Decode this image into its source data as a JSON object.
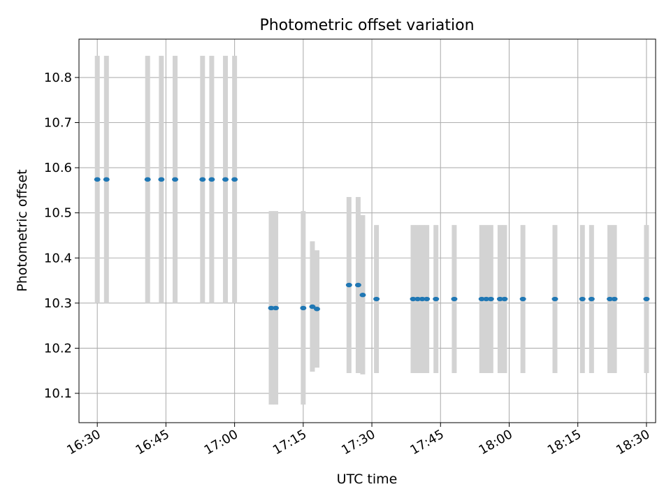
{
  "chart_data": {
    "type": "scatter",
    "title": "Photometric offset variation",
    "xlabel": "UTC time",
    "ylabel": "Photometric offset",
    "xlim": [
      "16:26",
      "18:32"
    ],
    "ylim": [
      10.035,
      10.885
    ],
    "grid": true,
    "x_ticks": [
      "16:30",
      "16:45",
      "17:00",
      "17:15",
      "17:30",
      "17:45",
      "18:00",
      "18:15",
      "18:30"
    ],
    "y_ticks": [
      "10.1",
      "10.2",
      "10.3",
      "10.4",
      "10.5",
      "10.6",
      "10.7",
      "10.8"
    ],
    "point_color": "#1f77b4",
    "errorbar_color": "#d3d3d3",
    "points": [
      {
        "time": "16:30",
        "y": 10.574,
        "ylow": 10.3,
        "yhigh": 10.848
      },
      {
        "time": "16:32",
        "y": 10.574,
        "ylow": 10.3,
        "yhigh": 10.848
      },
      {
        "time": "16:41",
        "y": 10.574,
        "ylow": 10.3,
        "yhigh": 10.848
      },
      {
        "time": "16:44",
        "y": 10.574,
        "ylow": 10.3,
        "yhigh": 10.848
      },
      {
        "time": "16:47",
        "y": 10.574,
        "ylow": 10.3,
        "yhigh": 10.848
      },
      {
        "time": "16:53",
        "y": 10.574,
        "ylow": 10.3,
        "yhigh": 10.848
      },
      {
        "time": "16:55",
        "y": 10.574,
        "ylow": 10.3,
        "yhigh": 10.848
      },
      {
        "time": "16:58",
        "y": 10.574,
        "ylow": 10.3,
        "yhigh": 10.848
      },
      {
        "time": "17:00",
        "y": 10.574,
        "ylow": 10.3,
        "yhigh": 10.848
      },
      {
        "time": "17:08",
        "y": 10.289,
        "ylow": 10.075,
        "yhigh": 10.504
      },
      {
        "time": "17:09",
        "y": 10.289,
        "ylow": 10.075,
        "yhigh": 10.504
      },
      {
        "time": "17:15",
        "y": 10.289,
        "ylow": 10.075,
        "yhigh": 10.504
      },
      {
        "time": "17:17",
        "y": 10.292,
        "ylow": 10.148,
        "yhigh": 10.437
      },
      {
        "time": "17:18",
        "y": 10.287,
        "ylow": 10.157,
        "yhigh": 10.417
      },
      {
        "time": "17:25",
        "y": 10.34,
        "ylow": 10.145,
        "yhigh": 10.535
      },
      {
        "time": "17:27",
        "y": 10.34,
        "ylow": 10.145,
        "yhigh": 10.535
      },
      {
        "time": "17:28",
        "y": 10.318,
        "ylow": 10.142,
        "yhigh": 10.495
      },
      {
        "time": "17:31",
        "y": 10.309,
        "ylow": 10.145,
        "yhigh": 10.473
      },
      {
        "time": "17:39",
        "y": 10.309,
        "ylow": 10.145,
        "yhigh": 10.473
      },
      {
        "time": "17:40",
        "y": 10.309,
        "ylow": 10.145,
        "yhigh": 10.473
      },
      {
        "time": "17:41",
        "y": 10.309,
        "ylow": 10.145,
        "yhigh": 10.473
      },
      {
        "time": "17:42",
        "y": 10.309,
        "ylow": 10.145,
        "yhigh": 10.473
      },
      {
        "time": "17:44",
        "y": 10.309,
        "ylow": 10.145,
        "yhigh": 10.473
      },
      {
        "time": "17:48",
        "y": 10.309,
        "ylow": 10.145,
        "yhigh": 10.473
      },
      {
        "time": "17:54",
        "y": 10.309,
        "ylow": 10.145,
        "yhigh": 10.473
      },
      {
        "time": "17:55",
        "y": 10.309,
        "ylow": 10.145,
        "yhigh": 10.473
      },
      {
        "time": "17:56",
        "y": 10.309,
        "ylow": 10.145,
        "yhigh": 10.473
      },
      {
        "time": "17:58",
        "y": 10.309,
        "ylow": 10.145,
        "yhigh": 10.473
      },
      {
        "time": "17:59",
        "y": 10.309,
        "ylow": 10.145,
        "yhigh": 10.473
      },
      {
        "time": "18:03",
        "y": 10.309,
        "ylow": 10.145,
        "yhigh": 10.473
      },
      {
        "time": "18:10",
        "y": 10.309,
        "ylow": 10.145,
        "yhigh": 10.473
      },
      {
        "time": "18:16",
        "y": 10.309,
        "ylow": 10.145,
        "yhigh": 10.473
      },
      {
        "time": "18:18",
        "y": 10.309,
        "ylow": 10.145,
        "yhigh": 10.473
      },
      {
        "time": "18:22",
        "y": 10.309,
        "ylow": 10.145,
        "yhigh": 10.473
      },
      {
        "time": "18:23",
        "y": 10.309,
        "ylow": 10.145,
        "yhigh": 10.473
      },
      {
        "time": "18:30",
        "y": 10.309,
        "ylow": 10.145,
        "yhigh": 10.473
      }
    ]
  }
}
